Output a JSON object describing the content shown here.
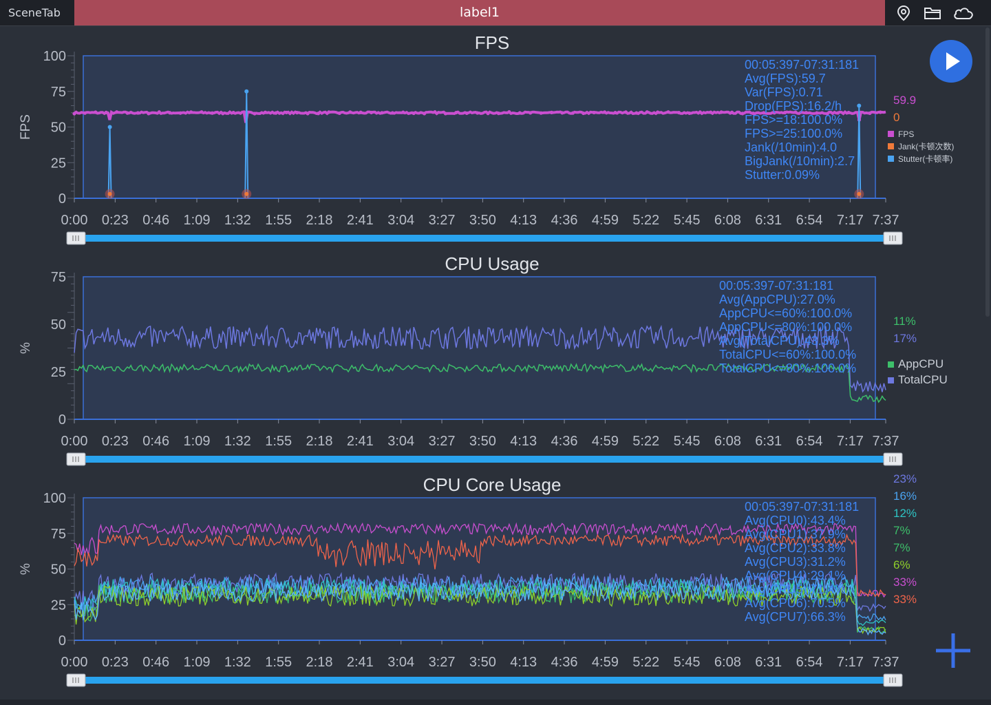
{
  "topbar": {
    "scene_tab": "SceneTab",
    "label": "label1",
    "icons": [
      "location-pin-icon",
      "folder-icon",
      "cloud-icon"
    ]
  },
  "colors": {
    "bg": "#2b3039",
    "plot_bg": "#2e3a52",
    "axis": "#3a6fd8",
    "fps": "#c94fd0",
    "jank": "#f07a3a",
    "stutter": "#4aa3f0",
    "app_cpu": "#3dbf6a",
    "total_cpu": "#6d78e0",
    "slider": "#29a3ee",
    "stats_text": "#3f86f5"
  },
  "charts": [
    {
      "key": "fps",
      "title": "FPS",
      "ylabel": "FPS",
      "yticks": [
        "100",
        "75",
        "50",
        "25",
        "0"
      ],
      "xticks": [
        "0:00",
        "0:23",
        "0:46",
        "1:09",
        "1:32",
        "1:55",
        "2:18",
        "2:41",
        "3:04",
        "3:27",
        "3:50",
        "4:13",
        "4:36",
        "4:59",
        "5:22",
        "5:45",
        "6:08",
        "6:31",
        "6:54",
        "7:17",
        "7:37"
      ],
      "stats": [
        "00:05:397-07:31:181",
        "Avg(FPS):59.7",
        "Var(FPS):0.71",
        "Drop(FPS):16.2/h",
        "FPS>=18:100.0%",
        "FPS>=25:100.0%",
        "Jank(/10min):4.0",
        "BigJank(/10min):2.7",
        "Stutter:0.09%"
      ],
      "current_values": [
        {
          "text": "59.9",
          "color": "#c94fd0"
        },
        {
          "text": "0",
          "color": "#f07a3a"
        }
      ],
      "legend": [
        {
          "label": "FPS",
          "color": "#c94fd0"
        },
        {
          "label": "Jank(卡顿次数)",
          "color": "#f07a3a"
        },
        {
          "label": "Stutter(卡顿率)",
          "color": "#4aa3f0"
        }
      ]
    },
    {
      "key": "cpu",
      "title": "CPU Usage",
      "ylabel": "%",
      "yticks": [
        "75",
        "50",
        "25",
        "0"
      ],
      "xticks": [
        "0:00",
        "0:23",
        "0:46",
        "1:09",
        "1:32",
        "1:55",
        "2:18",
        "2:41",
        "3:04",
        "3:27",
        "3:50",
        "4:13",
        "4:36",
        "4:59",
        "5:22",
        "5:45",
        "6:08",
        "6:31",
        "6:54",
        "7:17",
        "7:37"
      ],
      "stats": [
        "00:05:397-07:31:181",
        "Avg(AppCPU):27.0%",
        "AppCPU<=60%:100.0%",
        "AppCPU<=80%:100.0%",
        "Avg(TotalCPU):43.3%",
        "TotalCPU<=60%:100.0%",
        "TotalCPU<=80%:100.0%"
      ],
      "current_values": [
        {
          "text": "11%",
          "color": "#3dbf6a"
        },
        {
          "text": "17%",
          "color": "#6d78e0"
        }
      ],
      "legend": [
        {
          "label": "AppCPU",
          "color": "#3dbf6a"
        },
        {
          "label": "TotalCPU",
          "color": "#6d78e0"
        }
      ]
    },
    {
      "key": "core",
      "title": "CPU Core Usage",
      "ylabel": "%",
      "yticks": [
        "100",
        "75",
        "50",
        "25",
        "0"
      ],
      "xticks": [
        "0:00",
        "0:23",
        "0:46",
        "1:09",
        "1:32",
        "1:55",
        "2:18",
        "2:41",
        "3:04",
        "3:27",
        "3:50",
        "4:13",
        "4:36",
        "4:59",
        "5:22",
        "5:45",
        "6:08",
        "6:31",
        "6:54",
        "7:17",
        "7:37"
      ],
      "stats": [
        "00:05:397-07:31:181",
        "Avg(CPU0):43.4%",
        "Avg(CPU1):37.9%",
        "Avg(CPU2):33.8%",
        "Avg(CPU3):31.2%",
        "Avg(CPU4):29.1%",
        "Avg(CPU5):71.4%",
        "Avg(CPU6):70.5%",
        "Avg(CPU7):66.3%"
      ],
      "current_values": [
        {
          "text": "23%",
          "color": "#6d78e0"
        },
        {
          "text": "16%",
          "color": "#4aa3f0"
        },
        {
          "text": "12%",
          "color": "#2ec4c4"
        },
        {
          "text": "7%",
          "color": "#3dbf6a"
        },
        {
          "text": "7%",
          "color": "#3dbf6a"
        },
        {
          "text": "6%",
          "color": "#8fcf2a"
        },
        {
          "text": "33%",
          "color": "#c94fd0"
        },
        {
          "text": "33%",
          "color": "#f0644a"
        }
      ],
      "legend": []
    }
  ],
  "chart_data": [
    {
      "type": "line",
      "title": "FPS",
      "ylabel": "FPS",
      "ylim": [
        0,
        100
      ],
      "x_range": [
        "0:00",
        "7:37"
      ],
      "series": [
        {
          "name": "FPS",
          "baseline": 60,
          "min_dips": [
            {
              "x": "0:20",
              "y": 55
            },
            {
              "x": "1:37",
              "y": 53
            },
            {
              "x": "7:22",
              "y": 55
            }
          ]
        },
        {
          "name": "Stutter(卡顿率)",
          "spikes": [
            {
              "x": "0:20",
              "y": 50
            },
            {
              "x": "1:37",
              "y": 75
            },
            {
              "x": "7:22",
              "y": 65
            }
          ]
        },
        {
          "name": "Jank(卡顿次数)",
          "markers": [
            "0:20",
            "1:37",
            "7:22"
          ]
        }
      ],
      "grid": false,
      "legend": "right"
    },
    {
      "type": "line",
      "title": "CPU Usage",
      "ylabel": "%",
      "ylim": [
        0,
        75
      ],
      "x_range": [
        "0:00",
        "7:37"
      ],
      "series": [
        {
          "name": "AppCPU",
          "typical": 27,
          "end": 11
        },
        {
          "name": "TotalCPU",
          "typical": 43,
          "end": 17
        }
      ],
      "grid": false,
      "legend": "right"
    },
    {
      "type": "line",
      "title": "CPU Core Usage",
      "ylabel": "%",
      "ylim": [
        0,
        100
      ],
      "x_range": [
        "0:00",
        "7:37"
      ],
      "series": [
        {
          "name": "CPU0",
          "typical": 43,
          "end": 23
        },
        {
          "name": "CPU1",
          "typical": 38,
          "end": 16
        },
        {
          "name": "CPU2",
          "typical": 34,
          "end": 12
        },
        {
          "name": "CPU3",
          "typical": 31,
          "end": 7
        },
        {
          "name": "CPU4",
          "typical": 29,
          "end": 7
        },
        {
          "name": "CPU5",
          "typical": 71,
          "end": 33
        },
        {
          "name": "CPU6",
          "typical": 70,
          "end": 33
        },
        {
          "name": "CPU7",
          "typical": 66,
          "end": 6
        }
      ],
      "grid": false,
      "legend": "right"
    }
  ]
}
